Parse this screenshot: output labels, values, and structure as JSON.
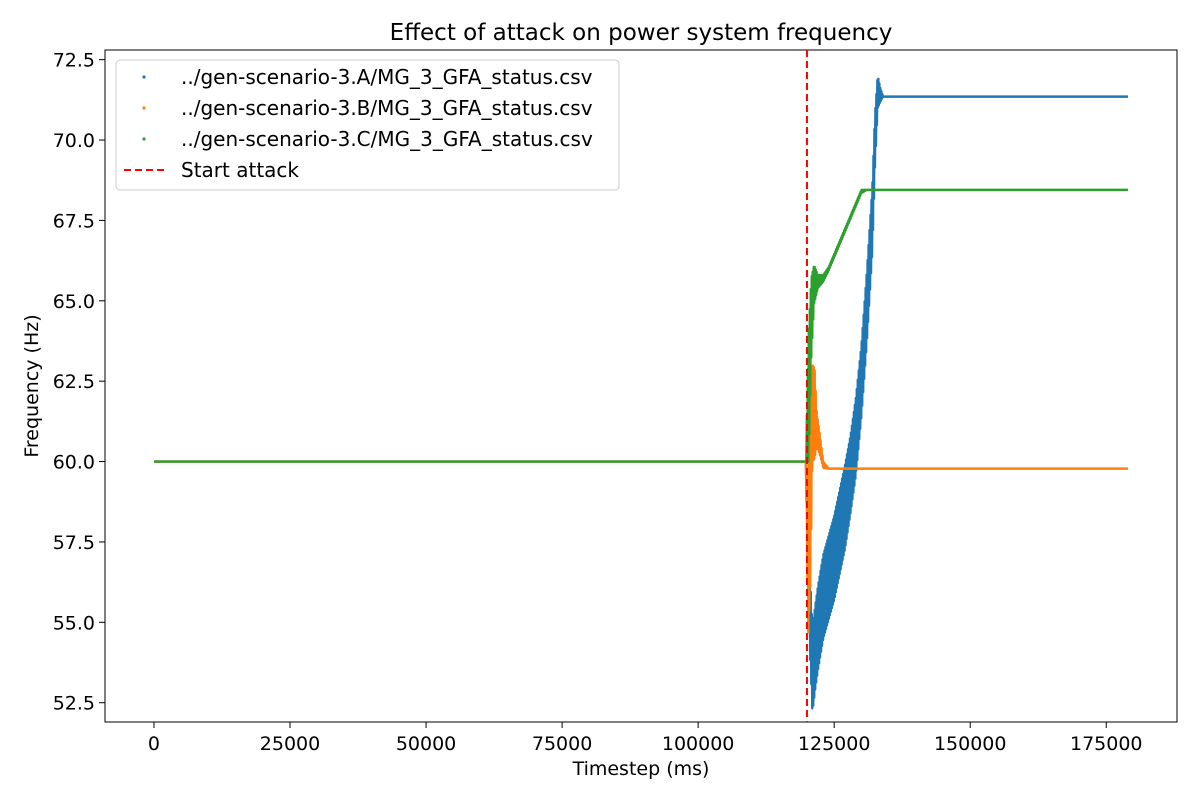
{
  "chart_data": {
    "type": "scatter",
    "title": "Effect of attack on power system frequency",
    "xlabel": "Timestep (ms)",
    "ylabel": "Frequency (Hz)",
    "xlim": [
      -9000,
      188000
    ],
    "ylim": [
      51.9,
      72.8
    ],
    "xticks": [
      0,
      25000,
      50000,
      75000,
      100000,
      125000,
      150000,
      175000
    ],
    "yticks": [
      52.5,
      55.0,
      57.5,
      60.0,
      62.5,
      65.0,
      67.5,
      70.0,
      72.5
    ],
    "grid": false,
    "legend_position": "top-left",
    "attack": {
      "label": "Start attack",
      "x": 120000,
      "color": "#ff0000"
    },
    "series": [
      {
        "name": "../gen-scenario-3.A/MG_3_GFA_status.csv",
        "color": "#1f77b4",
        "x": [
          0,
          119800,
          120500,
          121000,
          121500,
          122000,
          123000,
          124000,
          125000,
          126000,
          127000,
          128000,
          129000,
          130000,
          131000,
          132000,
          132500,
          133000,
          133500,
          134000,
          179000
        ],
        "y": [
          60.0,
          60.0,
          55.5,
          53.5,
          54.2,
          54.8,
          55.8,
          56.4,
          57.0,
          57.8,
          58.6,
          59.6,
          60.8,
          62.5,
          64.8,
          67.5,
          70.0,
          71.5,
          71.4,
          71.35,
          71.35
        ],
        "band": [
          0,
          0,
          1.2,
          1.3,
          1.3,
          1.3,
          1.3,
          1.3,
          1.3,
          1.3,
          1.3,
          1.2,
          1.2,
          1.1,
          1.1,
          1.0,
          0.8,
          0.5,
          0.2,
          0,
          0
        ]
      },
      {
        "name": "../gen-scenario-3.B/MG_3_GFA_status.csv",
        "color": "#ff7f0e",
        "x": [
          0,
          119800,
          120200,
          120600,
          121000,
          121400,
          121800,
          122400,
          123000,
          124000,
          126000,
          179000
        ],
        "y": [
          60.0,
          60.0,
          57.0,
          59.0,
          61.5,
          61.5,
          61.0,
          60.5,
          59.9,
          59.78,
          59.78,
          59.78
        ],
        "band": [
          0,
          0,
          2.5,
          3.0,
          1.5,
          1.4,
          0.5,
          0.3,
          0.1,
          0,
          0,
          0
        ]
      },
      {
        "name": "../gen-scenario-3.C/MG_3_GFA_status.csv",
        "color": "#2ca02c",
        "x": [
          0,
          119800,
          120300,
          120800,
          121300,
          122000,
          123000,
          124000,
          126000,
          128000,
          130000,
          131000,
          179000
        ],
        "y": [
          60.0,
          60.0,
          62.0,
          64.5,
          65.5,
          65.6,
          65.7,
          66.0,
          66.8,
          67.6,
          68.4,
          68.45,
          68.45
        ],
        "band": [
          0,
          0,
          2.0,
          1.2,
          0.6,
          0.2,
          0.1,
          0.05,
          0.05,
          0.05,
          0.05,
          0,
          0
        ]
      }
    ]
  }
}
